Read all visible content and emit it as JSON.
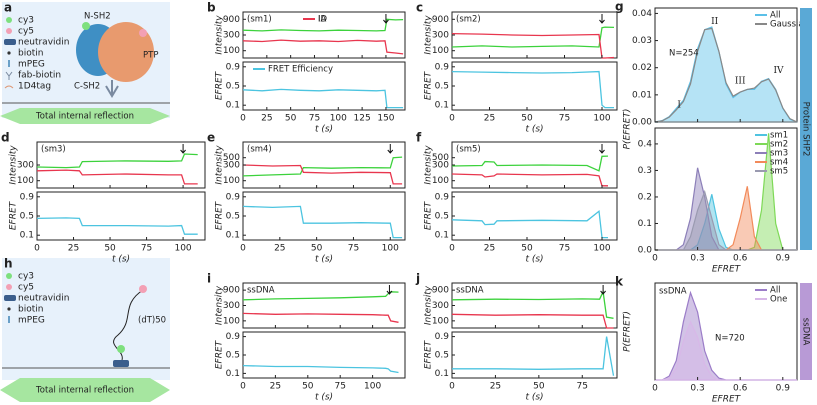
{
  "diagrams": {
    "a": {
      "label": "a",
      "legend": [
        "cy3",
        "cy5",
        "neutravidin",
        "biotin",
        "mPEG",
        "fab-biotin",
        "1D4tag"
      ],
      "parts": [
        "N-SH2",
        "C-SH2",
        "PTP"
      ],
      "footer": "Total internal reflection"
    },
    "h": {
      "label": "h",
      "legend": [
        "cy3",
        "cy5",
        "neutravidin",
        "biotin",
        "mPEG"
      ],
      "parts": [
        "(dT)50"
      ],
      "footer": "Total internal reflection"
    }
  },
  "chart_data": [
    {
      "type": "line",
      "label": "b",
      "tag": "(sm1)",
      "xlabel": "t (s)",
      "xlim": [
        0,
        170
      ],
      "xticks": [
        0,
        25,
        50,
        75,
        100,
        125,
        150
      ],
      "arrow_x": 150,
      "x": [
        0,
        20,
        40,
        60,
        80,
        100,
        120,
        140,
        149,
        151,
        160,
        168
      ],
      "top": {
        "ylabel": "Intensity",
        "log": true,
        "ylim": [
          60,
          1500
        ],
        "yticks": [
          100,
          300,
          900
        ],
        "series": [
          {
            "name": "ID",
            "color": "#3cd23c",
            "values": [
              420,
              400,
              430,
              410,
              400,
              420,
              410,
              400,
              410,
              900,
              860,
              880
            ]
          },
          {
            "name": "IA",
            "color": "#e8364e",
            "values": [
              200,
              190,
              210,
              195,
              200,
              190,
              205,
              195,
              200,
              90,
              85,
              80
            ]
          }
        ]
      },
      "bottom": {
        "ylabel": "EFRET",
        "ylim": [
          0,
          1
        ],
        "yticks": [
          0.1,
          0.5,
          0.9
        ],
        "series": [
          {
            "name": "FRET Efficiency",
            "color": "#4cc4e0",
            "values": [
              0.42,
              0.4,
              0.43,
              0.41,
              0.4,
              0.42,
              0.41,
              0.4,
              0.41,
              0.05,
              0.05,
              0.05
            ]
          }
        ]
      }
    },
    {
      "type": "line",
      "label": "c",
      "tag": "(sm2)",
      "xlabel": "t (s)",
      "xlim": [
        0,
        110
      ],
      "xticks": [
        0,
        25,
        50,
        75,
        100
      ],
      "arrow_x": 100,
      "x": [
        0,
        20,
        40,
        60,
        80,
        98,
        100,
        102,
        108
      ],
      "top": {
        "ylabel": "Intensity",
        "log": true,
        "ylim": [
          60,
          1500
        ],
        "yticks": [
          100,
          300,
          900
        ],
        "series": [
          {
            "color": "#3cd23c",
            "values": [
              130,
              140,
              130,
              135,
              140,
              130,
              500,
              520,
              510
            ]
          },
          {
            "color": "#e8364e",
            "values": [
              330,
              320,
              300,
              290,
              300,
              310,
              60,
              60,
              62
            ]
          }
        ]
      },
      "bottom": {
        "ylabel": "EFRET",
        "ylim": [
          0,
          1
        ],
        "yticks": [
          0.1,
          0.5,
          0.9
        ],
        "series": [
          {
            "color": "#4cc4e0",
            "values": [
              0.8,
              0.79,
              0.78,
              0.77,
              0.78,
              0.8,
              0.1,
              0.05,
              0.05
            ]
          }
        ]
      }
    },
    {
      "type": "line",
      "label": "d",
      "tag": "(sm3)",
      "xlabel": "t (s)",
      "xlim": [
        0,
        115
      ],
      "xticks": [
        0,
        25,
        50,
        75,
        100
      ],
      "arrow_x": 100,
      "x": [
        0,
        20,
        29,
        31,
        60,
        90,
        99,
        101,
        110
      ],
      "top": {
        "ylabel": "Intensity",
        "log": true,
        "ylim": [
          60,
          1500
        ],
        "yticks": [
          100,
          300
        ],
        "series": [
          {
            "color": "#3cd23c",
            "values": [
              260,
              250,
              260,
              380,
              400,
              390,
              400,
              650,
              620
            ]
          },
          {
            "color": "#e8364e",
            "values": [
              200,
              210,
              200,
              150,
              160,
              150,
              150,
              80,
              80
            ]
          }
        ]
      },
      "bottom": {
        "ylabel": "EFRET",
        "ylim": [
          0,
          1
        ],
        "yticks": [
          0.1,
          0.5,
          0.9
        ],
        "series": [
          {
            "color": "#4cc4e0",
            "values": [
              0.45,
              0.46,
              0.45,
              0.3,
              0.3,
              0.29,
              0.3,
              0.12,
              0.12
            ]
          }
        ]
      }
    },
    {
      "type": "line",
      "label": "e",
      "tag": "(sm4)",
      "xlabel": "t (s)",
      "xlim": [
        0,
        110
      ],
      "xticks": [
        0,
        25,
        50,
        75,
        100
      ],
      "arrow_x": 100,
      "x": [
        0,
        20,
        39,
        41,
        60,
        80,
        100,
        102,
        108
      ],
      "top": {
        "ylabel": "Intensity",
        "log": true,
        "ylim": [
          60,
          1500
        ],
        "yticks": [
          100,
          300,
          500
        ],
        "series": [
          {
            "color": "#3cd23c",
            "values": [
              140,
              150,
              160,
              250,
              240,
              250,
              245,
              500,
              520
            ]
          },
          {
            "color": "#e8364e",
            "values": [
              300,
              280,
              290,
              180,
              170,
              180,
              175,
              80,
              80
            ]
          }
        ]
      },
      "bottom": {
        "ylabel": "EFRET",
        "ylim": [
          0,
          1
        ],
        "yticks": [
          0.1,
          0.5,
          0.9
        ],
        "series": [
          {
            "color": "#4cc4e0",
            "values": [
              0.7,
              0.68,
              0.7,
              0.35,
              0.35,
              0.36,
              0.35,
              0.05,
              0.05
            ]
          }
        ]
      }
    },
    {
      "type": "line",
      "label": "f",
      "tag": "(sm5)",
      "xlabel": "t (s)",
      "xlim": [
        0,
        110
      ],
      "xticks": [
        0,
        25,
        50,
        75,
        100
      ],
      "arrow_x": 100,
      "x": [
        0,
        20,
        22,
        28,
        30,
        60,
        90,
        98,
        100,
        104
      ],
      "top": {
        "ylabel": "Intensity",
        "log": true,
        "ylim": [
          60,
          1500
        ],
        "yticks": [
          100,
          300,
          500
        ],
        "series": [
          {
            "color": "#3cd23c",
            "values": [
              280,
              290,
              380,
              370,
              290,
              300,
              290,
              200,
              550,
              560
            ]
          },
          {
            "color": "#e8364e",
            "values": [
              160,
              150,
              130,
              140,
              160,
              150,
              155,
              140,
              70,
              70
            ]
          }
        ]
      },
      "bottom": {
        "ylabel": "EFRET",
        "ylim": [
          0,
          1
        ],
        "yticks": [
          0.1,
          0.5,
          0.9
        ],
        "series": [
          {
            "color": "#4cc4e0",
            "values": [
              0.42,
              0.4,
              0.32,
              0.33,
              0.4,
              0.41,
              0.4,
              0.6,
              0.05,
              0.05
            ]
          }
        ]
      }
    },
    {
      "type": "line",
      "label": "i",
      "tag": "ssDNA",
      "xlabel": "t (s)",
      "xlim": [
        0,
        125
      ],
      "xticks": [
        0,
        25,
        50,
        75,
        100
      ],
      "arrow_x": 113,
      "x": [
        0,
        25,
        50,
        75,
        100,
        110,
        112,
        114,
        120
      ],
      "top": {
        "ylabel": "Intensity",
        "log": true,
        "ylim": [
          60,
          1500
        ],
        "yticks": [
          100,
          300,
          900
        ],
        "series": [
          {
            "color": "#3cd23c",
            "values": [
              450,
              480,
              500,
              520,
              560,
              580,
              700,
              800,
              780
            ]
          },
          {
            "color": "#e8364e",
            "values": [
              170,
              160,
              165,
              160,
              155,
              150,
              150,
              100,
              90
            ]
          }
        ]
      },
      "bottom": {
        "ylabel": "EFRET",
        "ylim": [
          0,
          1
        ],
        "yticks": [
          0.1,
          0.5,
          0.9
        ],
        "series": [
          {
            "color": "#4cc4e0",
            "values": [
              0.27,
              0.25,
              0.25,
              0.23,
              0.22,
              0.21,
              0.2,
              0.15,
              0.12
            ]
          }
        ]
      }
    },
    {
      "type": "line",
      "label": "j",
      "tag": "ssDNA",
      "xlabel": "t (s)",
      "xlim": [
        0,
        95
      ],
      "xticks": [
        0,
        25,
        50,
        75
      ],
      "arrow_x": 87,
      "x": [
        0,
        25,
        50,
        75,
        85,
        87,
        89,
        93
      ],
      "top": {
        "ylabel": "Intensity",
        "log": true,
        "ylim": [
          60,
          1500
        ],
        "yticks": [
          100,
          300,
          900
        ],
        "series": [
          {
            "color": "#3cd23c",
            "values": [
              450,
              470,
              460,
              480,
              470,
              800,
              130,
              120
            ]
          },
          {
            "color": "#e8364e",
            "values": [
              160,
              150,
              155,
              150,
              150,
              150,
              60,
              60
            ]
          }
        ]
      },
      "bottom": {
        "ylabel": "EFRET",
        "ylim": [
          0,
          1
        ],
        "yticks": [
          0.1,
          0.5,
          0.9
        ],
        "series": [
          {
            "color": "#4cc4e0",
            "values": [
              0.2,
              0.2,
              0.19,
              0.2,
              0.2,
              0.2,
              0.9,
              0.05
            ]
          }
        ]
      }
    },
    {
      "type": "area",
      "label": "g",
      "xlabel": "EFRET",
      "ylabel": "P(EFRET)",
      "side_label": "Protein SHP2",
      "xlim": [
        0,
        1
      ],
      "xticks": [
        0,
        0.3,
        0.6,
        0.9
      ],
      "x": [
        0,
        0.05,
        0.1,
        0.15,
        0.2,
        0.25,
        0.3,
        0.35,
        0.4,
        0.45,
        0.5,
        0.55,
        0.6,
        0.65,
        0.7,
        0.75,
        0.8,
        0.85,
        0.9,
        0.95,
        1
      ],
      "top": {
        "note": "N=254",
        "peaks": [
          "I",
          "II",
          "III",
          "IV"
        ],
        "ylim": [
          0,
          0.042
        ],
        "yticks": [
          {
            "value": 0,
            "label": "0.00"
          },
          0.01,
          0.02,
          0.03,
          0.04
        ],
        "series": [
          {
            "name": "All",
            "color": "#5bc0e8",
            "values": [
              0,
              0.0005,
              0.002,
              0.005,
              0.008,
              0.015,
              0.027,
              0.034,
              0.035,
              0.026,
              0.014,
              0.009,
              0.011,
              0.012,
              0.012,
              0.015,
              0.016,
              0.012,
              0.005,
              0.001,
              0
            ]
          },
          {
            "name": "Gaussian",
            "color": "#888888",
            "values": [
              0,
              0.0004,
              0.0018,
              0.0045,
              0.0075,
              0.014,
              0.026,
              0.034,
              0.0345,
              0.026,
              0.0145,
              0.0095,
              0.011,
              0.012,
              0.0125,
              0.0148,
              0.0158,
              0.0118,
              0.0052,
              0.0012,
              0
            ]
          }
        ]
      },
      "bottom": {
        "ylim": [
          0,
          0.46
        ],
        "yticks": [
          {
            "value": 0,
            "label": "0.0"
          },
          0.1,
          0.2,
          0.3,
          0.4
        ],
        "series": [
          {
            "name": "sm1",
            "color": "#4fc3e0",
            "values": [
              0,
              0,
              0,
              0,
              0,
              0,
              0.02,
              0.1,
              0.21,
              0.08,
              0.01,
              0,
              0,
              0,
              0,
              0,
              0,
              0,
              0,
              0,
              0
            ]
          },
          {
            "name": "sm2",
            "color": "#7ed957",
            "values": [
              0,
              0,
              0,
              0,
              0,
              0,
              0,
              0,
              0,
              0,
              0,
              0,
              0,
              0,
              0.01,
              0.15,
              0.44,
              0.1,
              0,
              0,
              0
            ]
          },
          {
            "name": "sm3",
            "color": "#8c7fb8",
            "values": [
              0,
              0,
              0,
              0,
              0.02,
              0.12,
              0.31,
              0.2,
              0.05,
              0,
              0,
              0,
              0,
              0,
              0,
              0,
              0,
              0,
              0,
              0,
              0
            ]
          },
          {
            "name": "sm4",
            "color": "#f28a5a",
            "values": [
              0,
              0,
              0,
              0,
              0,
              0,
              0,
              0,
              0,
              0,
              0,
              0.02,
              0.12,
              0.24,
              0.05,
              0,
              0,
              0,
              0,
              0,
              0
            ]
          },
          {
            "name": "sm5",
            "color": "#9a9ab0",
            "values": [
              0,
              0,
              0,
              0,
              0,
              0.05,
              0.15,
              0.22,
              0.12,
              0.02,
              0,
              0,
              0,
              0,
              0,
              0,
              0,
              0,
              0,
              0,
              0
            ]
          }
        ]
      }
    },
    {
      "type": "area",
      "label": "k",
      "tag": "ssDNA",
      "xlabel": "EFRET",
      "ylabel": "P(EFRET)",
      "side_label": "ssDNA",
      "xlim": [
        0,
        1
      ],
      "xticks": [
        0,
        0.3,
        0.6,
        0.9
      ],
      "x": [
        0,
        0.05,
        0.1,
        0.15,
        0.2,
        0.25,
        0.3,
        0.35,
        0.4,
        0.45,
        0.5,
        0.55,
        0.6,
        0.65,
        0.7,
        0.75,
        0.8,
        0.85,
        0.9,
        0.95,
        1
      ],
      "top": {
        "note": "N=720",
        "ylim": [
          0,
          0.05
        ],
        "series": [
          {
            "name": "All",
            "color": "#9b7cc8",
            "values": [
              0,
              0,
              0.002,
              0.01,
              0.03,
              0.045,
              0.035,
              0.015,
              0.005,
              0.001,
              0,
              0,
              0,
              0,
              0,
              0,
              0,
              0,
              0,
              0,
              0
            ]
          },
          {
            "name": "One",
            "color": "#d8b8e8",
            "values": [
              0,
              0,
              0.001,
              0.006,
              0.02,
              0.03,
              0.022,
              0.008,
              0.002,
              0,
              0,
              0,
              0,
              0,
              0,
              0,
              0,
              0,
              0,
              0,
              0
            ]
          }
        ]
      }
    }
  ]
}
